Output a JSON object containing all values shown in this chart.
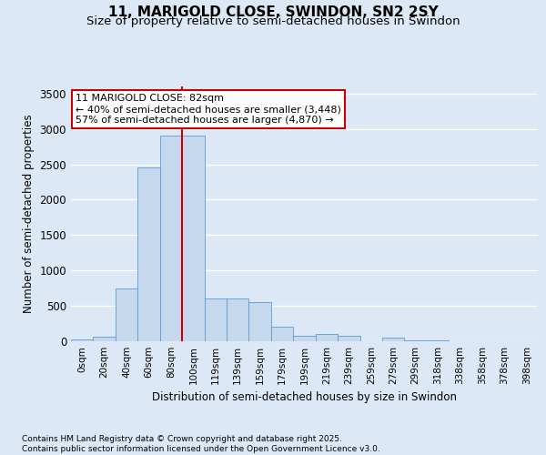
{
  "title1": "11, MARIGOLD CLOSE, SWINDON, SN2 2SY",
  "title2": "Size of property relative to semi-detached houses in Swindon",
  "xlabel": "Distribution of semi-detached houses by size in Swindon",
  "ylabel": "Number of semi-detached properties",
  "bin_labels": [
    "0sqm",
    "20sqm",
    "40sqm",
    "60sqm",
    "80sqm",
    "100sqm",
    "119sqm",
    "139sqm",
    "159sqm",
    "179sqm",
    "199sqm",
    "219sqm",
    "239sqm",
    "259sqm",
    "279sqm",
    "299sqm",
    "318sqm",
    "338sqm",
    "358sqm",
    "378sqm",
    "398sqm"
  ],
  "bar_heights": [
    20,
    70,
    750,
    2450,
    2900,
    2900,
    600,
    600,
    550,
    200,
    75,
    100,
    75,
    5,
    50,
    10,
    10,
    0,
    0,
    0,
    0
  ],
  "bar_color": "#c5d8ee",
  "bar_edge_color": "#5b9bd5",
  "bar_alpha": 1.0,
  "vline_color": "#cc0000",
  "vline_x": 4.5,
  "annotation_text": "11 MARIGOLD CLOSE: 82sqm\n← 40% of semi-detached houses are smaller (3,448)\n57% of semi-detached houses are larger (4,870) →",
  "annotation_box_color": "#ffffff",
  "annotation_box_edge": "#cc0000",
  "ylim": [
    0,
    3600
  ],
  "yticks": [
    0,
    500,
    1000,
    1500,
    2000,
    2500,
    3000,
    3500
  ],
  "footer_text": "Contains HM Land Registry data © Crown copyright and database right 2025.\nContains public sector information licensed under the Open Government Licence v3.0.",
  "bg_color": "#dce8f5",
  "plot_bg_color": "#dce8f5",
  "grid_color": "#ffffff",
  "title1_fontsize": 11,
  "title2_fontsize": 9.5
}
